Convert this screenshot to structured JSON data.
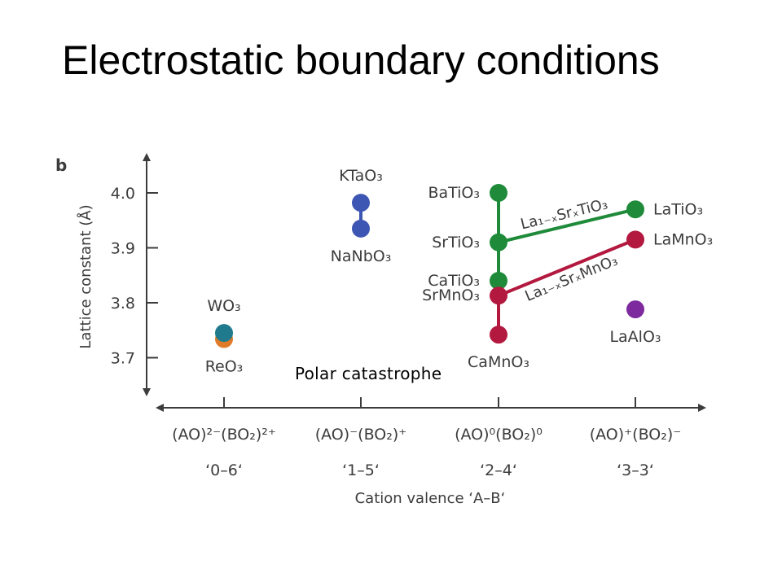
{
  "slide": {
    "title": "Electrostatic boundary conditions",
    "callout": "Polar catastrophe"
  },
  "chart_data": {
    "type": "scatter",
    "panel_label": "b",
    "ylabel": "Lattice constant (Å)",
    "xlabel": "Cation valence ‘A–B‘",
    "ylim": [
      3.635,
      4.05
    ],
    "y_ticks": [
      3.7,
      3.8,
      3.9,
      4.0
    ],
    "y_tick_labels": [
      "3.7",
      "3.8",
      "3.9",
      "4.0"
    ],
    "categories": [
      {
        "charge": "(AO)²⁻(BO₂)²⁺",
        "valence": "‘0–6‘"
      },
      {
        "charge": "(AO)⁻(BO₂)⁺",
        "valence": "‘1–5‘"
      },
      {
        "charge": "(AO)⁰(BO₂)⁰",
        "valence": "‘2–4‘"
      },
      {
        "charge": "(AO)⁺(BO₂)⁻",
        "valence": "‘3–3‘"
      }
    ],
    "points": [
      {
        "label": "ReO₃",
        "x": 0,
        "y": 3.734,
        "color": "#e07b2a",
        "label_pos": "below"
      },
      {
        "label": "WO₃",
        "x": 0,
        "y": 3.745,
        "color": "#1e7a8c",
        "label_pos": "above"
      },
      {
        "label": "KTaO₃",
        "x": 1,
        "y": 3.982,
        "color": "#3d55b3",
        "label_pos": "above"
      },
      {
        "label": "NaNbO₃",
        "x": 1,
        "y": 3.935,
        "color": "#3d55b3",
        "label_pos": "below"
      },
      {
        "label": "BaTiO₃",
        "x": 2,
        "y": 4.0,
        "color": "#1f8b3a",
        "label_pos": "left"
      },
      {
        "label": "SrTiO₃",
        "x": 2,
        "y": 3.91,
        "color": "#1f8b3a",
        "label_pos": "left"
      },
      {
        "label": "CaTiO₃",
        "x": 2,
        "y": 3.84,
        "color": "#1f8b3a",
        "label_pos": "left"
      },
      {
        "label": "SrMnO₃",
        "x": 2,
        "y": 3.813,
        "color": "#b3183f",
        "label_pos": "left"
      },
      {
        "label": "CaMnO₃",
        "x": 2,
        "y": 3.742,
        "color": "#b3183f",
        "label_pos": "below"
      },
      {
        "label": "LaTiO₃",
        "x": 3,
        "y": 3.97,
        "color": "#1f8b3a",
        "label_pos": "right"
      },
      {
        "label": "LaMnO₃",
        "x": 3,
        "y": 3.915,
        "color": "#b3183f",
        "label_pos": "right"
      },
      {
        "label": "LaAlO₃",
        "x": 3,
        "y": 3.788,
        "color": "#7d2a9e",
        "label_pos": "below"
      }
    ],
    "lines": [
      {
        "from": 2,
        "to": 3,
        "color": "#3d55b3"
      },
      {
        "from": 4,
        "to": 6,
        "color": "#1f8b3a"
      },
      {
        "from": 5,
        "to": 9,
        "color": "#1f8b3a",
        "label": "La₁₋ₓSrₓTiO₃"
      },
      {
        "from": 7,
        "to": 8,
        "color": "#b3183f"
      },
      {
        "from": 7,
        "to": 10,
        "color": "#b3183f",
        "label": "La₁₋ₓSrₓMnO₃"
      }
    ]
  }
}
